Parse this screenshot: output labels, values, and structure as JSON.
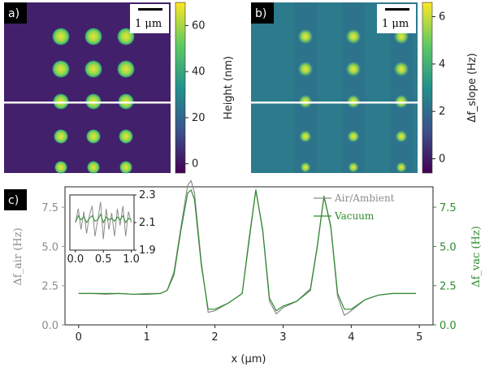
{
  "panels": {
    "a": {
      "label": "a)",
      "scalebar": "1 μm",
      "colorbar_label": "Height (nm)",
      "colorbar_ticks": [
        0,
        20,
        40,
        60
      ],
      "colorbar_range": [
        -4,
        70
      ],
      "colormap": [
        "#440154",
        "#3b528b",
        "#21918c",
        "#5ec962",
        "#fde725"
      ]
    },
    "b": {
      "label": "b)",
      "scalebar": "1 μm",
      "colorbar_label": "Δf_slope (Hz)",
      "colorbar_ticks": [
        0,
        2,
        4,
        6
      ],
      "colorbar_range": [
        -0.6,
        6.6
      ],
      "colormap": [
        "#440154",
        "#3b528b",
        "#21918c",
        "#5ec962",
        "#fde725"
      ]
    },
    "c": {
      "label": "c)"
    }
  },
  "chart_data": {
    "type": "line",
    "xlabel": "x (μm)",
    "ylabel_left": "Δf_air (Hz)",
    "ylabel_right": "Δf_vac (Hz)",
    "xlim": [
      -0.2,
      5.2
    ],
    "ylim": [
      0,
      8.8
    ],
    "xticks": [
      0,
      1,
      2,
      3,
      4,
      5
    ],
    "yticks": [
      0.0,
      2.5,
      5.0,
      7.5
    ],
    "ytick_labels": [
      "0.0",
      "2.5",
      "5.0",
      "7.5"
    ],
    "legend_placement": "top-right",
    "series": [
      {
        "name": "Air/Ambient",
        "color": "#8c8c8c",
        "x": [
          0.0,
          0.2,
          0.4,
          0.6,
          0.8,
          1.0,
          1.2,
          1.3,
          1.4,
          1.5,
          1.6,
          1.65,
          1.7,
          1.8,
          1.9,
          2.0,
          2.2,
          2.4,
          2.5,
          2.6,
          2.7,
          2.8,
          2.9,
          3.0,
          3.2,
          3.4,
          3.5,
          3.6,
          3.7,
          3.8,
          3.9,
          4.0,
          4.2,
          4.4,
          4.6,
          4.8,
          4.95
        ],
        "y": [
          2.0,
          2.0,
          1.95,
          2.0,
          1.95,
          2.0,
          2.0,
          2.2,
          3.4,
          6.2,
          8.9,
          9.2,
          8.4,
          4.0,
          0.8,
          0.9,
          1.4,
          2.0,
          5.5,
          8.6,
          6.0,
          1.5,
          0.7,
          1.1,
          1.5,
          2.3,
          5.0,
          8.2,
          6.2,
          1.8,
          0.6,
          0.9,
          1.6,
          1.9,
          2.0,
          2.0,
          2.0
        ]
      },
      {
        "name": "Vacuum",
        "color": "#2e8b2e",
        "x": [
          0.0,
          0.2,
          0.4,
          0.6,
          0.8,
          1.0,
          1.2,
          1.3,
          1.4,
          1.5,
          1.6,
          1.65,
          1.7,
          1.8,
          1.9,
          2.0,
          2.2,
          2.4,
          2.5,
          2.6,
          2.7,
          2.8,
          2.9,
          3.0,
          3.2,
          3.4,
          3.5,
          3.6,
          3.7,
          3.8,
          3.9,
          4.0,
          4.2,
          4.4,
          4.6,
          4.8,
          4.95
        ],
        "y": [
          2.0,
          2.0,
          2.0,
          2.0,
          1.95,
          1.95,
          2.0,
          2.2,
          3.2,
          6.0,
          8.4,
          8.6,
          8.0,
          3.8,
          1.0,
          1.0,
          1.4,
          2.0,
          5.3,
          8.6,
          6.1,
          1.7,
          0.9,
          1.2,
          1.5,
          2.2,
          4.9,
          8.2,
          6.3,
          2.0,
          1.0,
          1.0,
          1.6,
          1.9,
          2.0,
          2.0,
          2.0
        ]
      }
    ],
    "inset": {
      "xlim": [
        -0.1,
        1.05
      ],
      "ylim": [
        1.9,
        2.3
      ],
      "xticks": [
        0.0,
        0.5,
        1.0
      ],
      "xtick_labels": [
        "0.0",
        "0.5",
        "1.0"
      ],
      "yticks": [
        1.9,
        2.1,
        2.3
      ],
      "ytick_labels": [
        "1.9",
        "2.1",
        "2.3"
      ],
      "series": [
        {
          "name": "Air/Ambient",
          "x": [
            0.0,
            0.05,
            0.1,
            0.15,
            0.2,
            0.25,
            0.3,
            0.35,
            0.4,
            0.45,
            0.5,
            0.55,
            0.6,
            0.65,
            0.7,
            0.75,
            0.8,
            0.85,
            0.9,
            0.95,
            1.0
          ],
          "y": [
            2.1,
            2.2,
            2.05,
            2.18,
            2.02,
            2.15,
            2.22,
            2.0,
            2.12,
            2.25,
            1.98,
            2.2,
            2.05,
            2.17,
            2.0,
            2.2,
            2.08,
            2.22,
            2.0,
            2.18,
            2.1
          ]
        },
        {
          "name": "Vacuum",
          "x": [
            0.0,
            0.05,
            0.1,
            0.15,
            0.2,
            0.25,
            0.3,
            0.35,
            0.4,
            0.45,
            0.5,
            0.55,
            0.6,
            0.65,
            0.7,
            0.75,
            0.8,
            0.85,
            0.9,
            0.95,
            1.0
          ],
          "y": [
            2.1,
            2.15,
            2.12,
            2.14,
            2.1,
            2.13,
            2.15,
            2.11,
            2.12,
            2.16,
            2.1,
            2.14,
            2.12,
            2.13,
            2.11,
            2.14,
            2.12,
            2.15,
            2.1,
            2.13,
            2.12
          ]
        }
      ]
    }
  }
}
